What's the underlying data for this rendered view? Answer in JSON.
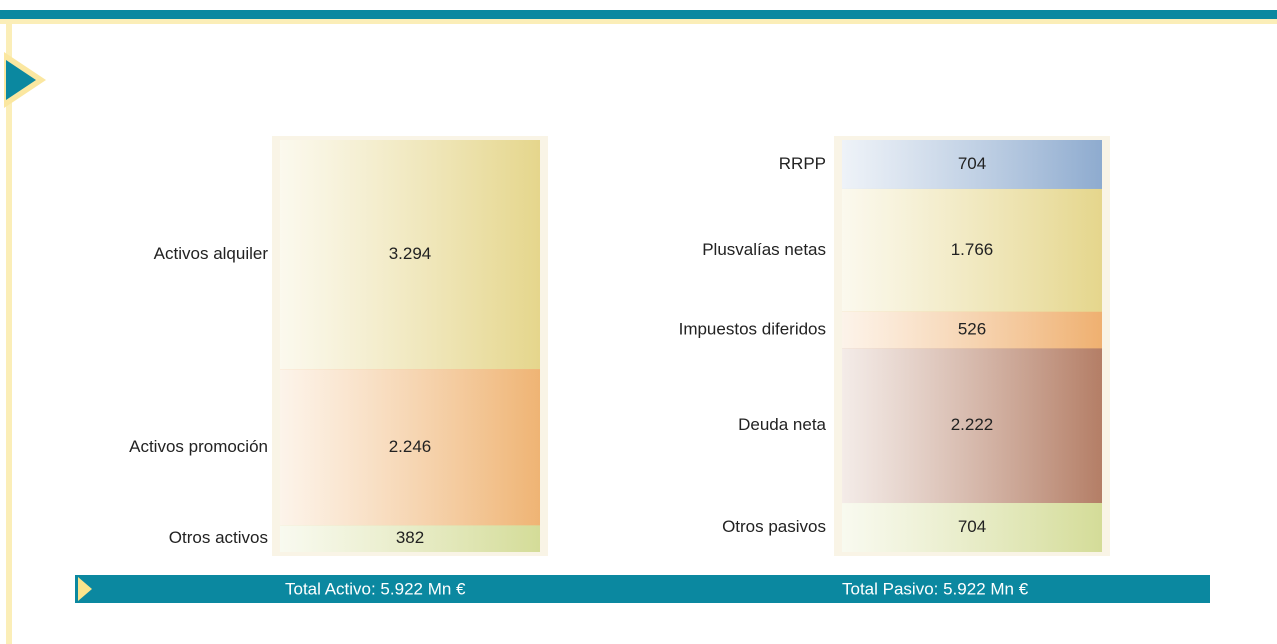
{
  "chart_data": [
    {
      "type": "stacked_column",
      "categories": [
        "Activos alquiler",
        "Activos promoción",
        "Otros activos"
      ],
      "values": [
        3294,
        2246,
        382
      ],
      "value_labels": [
        "3.294",
        "2.246",
        "382"
      ],
      "colors": [
        "#e5d68c",
        "#efb474",
        "#d4dc98"
      ],
      "total_label": "Total Activo: 5.922 Mn €"
    },
    {
      "type": "stacked_column",
      "categories": [
        "RRPP",
        "Plusvalías netas",
        "Impuestos diferidos",
        "Deuda neta",
        "Otros pasivos"
      ],
      "values": [
        704,
        1766,
        526,
        2222,
        704
      ],
      "value_labels": [
        "704",
        "1.766",
        "526",
        "2.222",
        "704"
      ],
      "colors": [
        "#8eabcf",
        "#e5d68c",
        "#efb070",
        "#b47e66",
        "#d4dc98"
      ],
      "total_label": "Total Pasivo: 5.922 Mn €"
    }
  ]
}
